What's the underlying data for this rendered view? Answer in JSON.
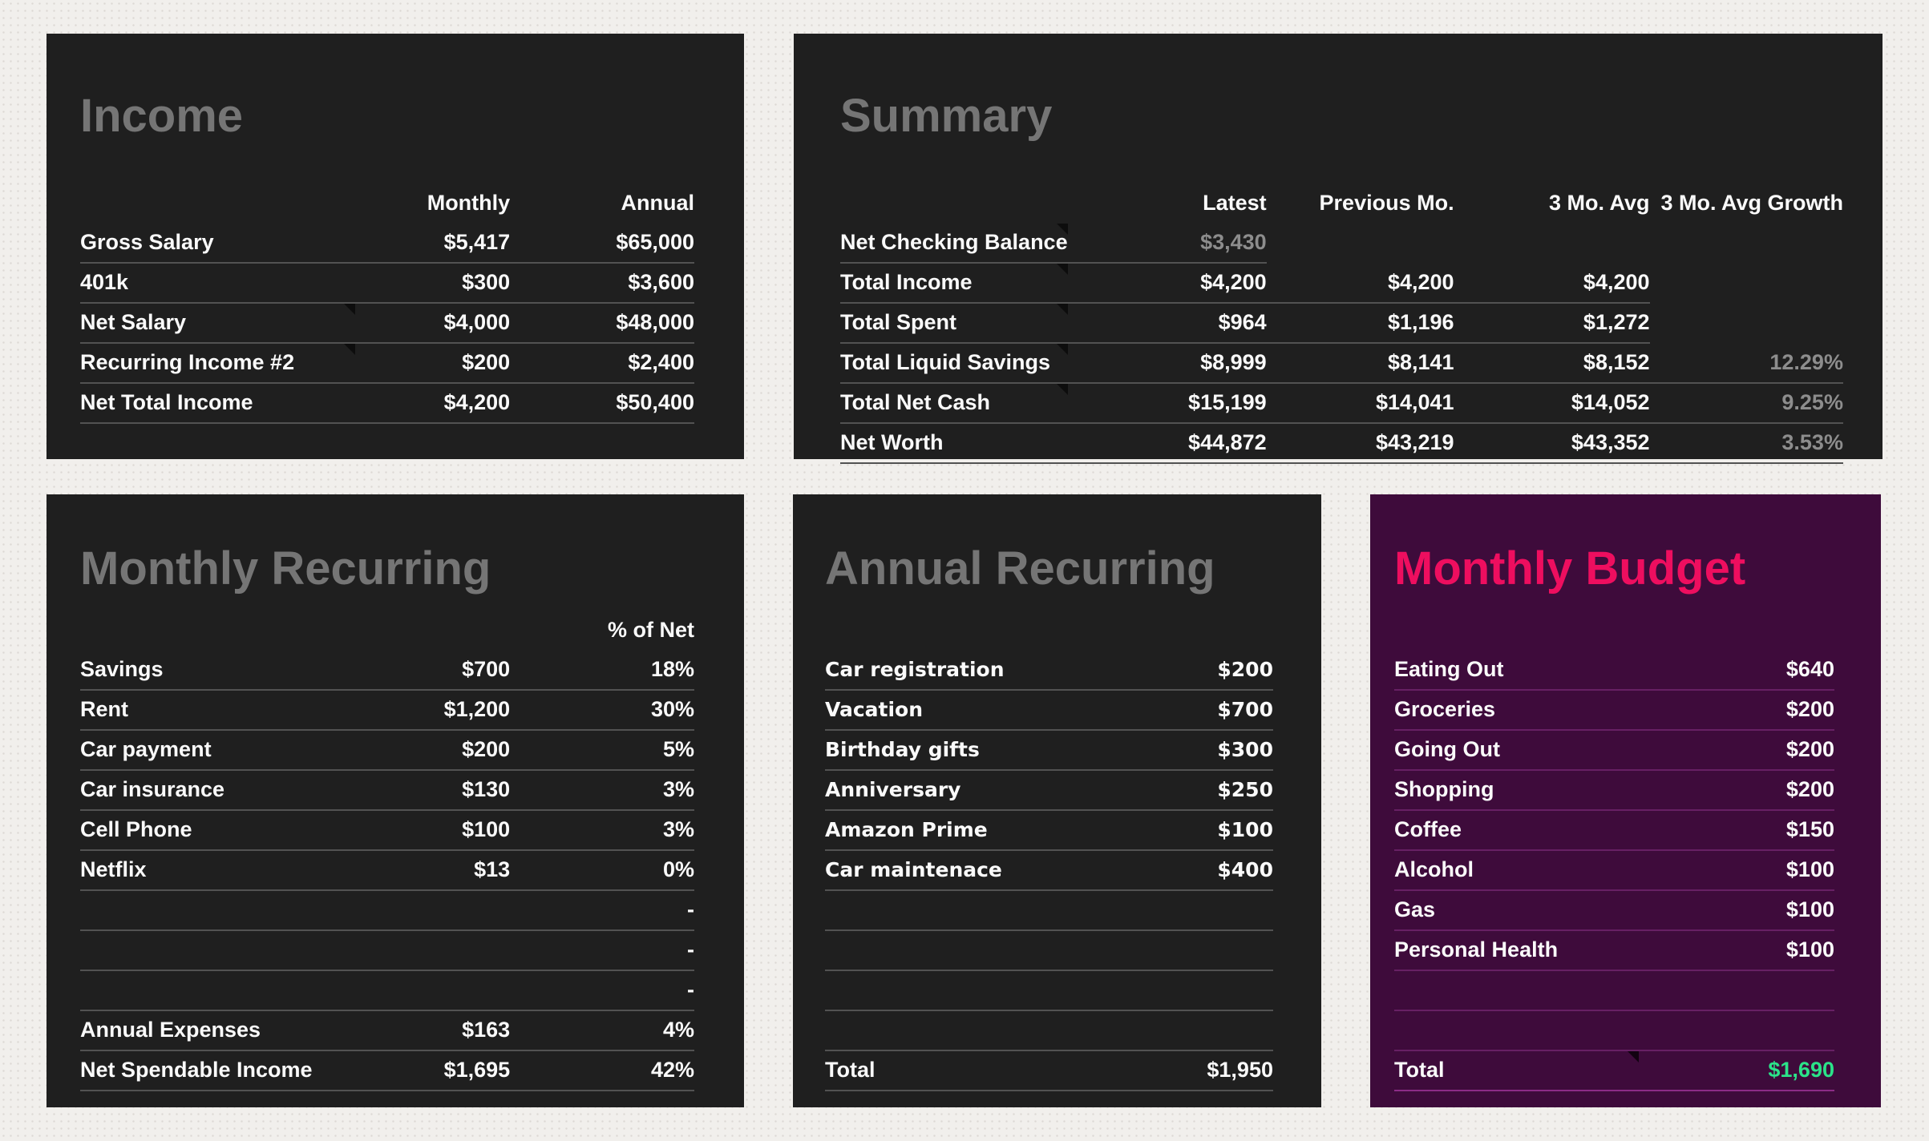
{
  "colors": {
    "page_bg": "#f1efec",
    "card_bg": "#1f1f1f",
    "budget_card_bg": "#3e0b3b",
    "title_gray": "#757575",
    "budget_title_pink": "#ee0e5f",
    "text_white": "#fafafa",
    "muted_gray": "#8d8d8d",
    "total_green": "#2be389",
    "rule_dark": "#525252",
    "rule_purple": "#672064"
  },
  "panels": {
    "income": {
      "title": "Income",
      "rows": [
        {
          "h": true,
          "cells": [
            "",
            "Monthly",
            "Annual"
          ]
        },
        {
          "rule": true,
          "cells": [
            "Gross Salary",
            "$5,417",
            "$65,000"
          ]
        },
        {
          "rule": true,
          "cells": [
            "401k",
            "$300",
            "$3,600"
          ]
        },
        {
          "rule": true,
          "m": true,
          "cells": [
            "Net Salary",
            "$4,000",
            "$48,000"
          ]
        },
        {
          "rule": true,
          "m": true,
          "cells": [
            "Recurring Income #2",
            "$200",
            "$2,400"
          ]
        },
        {
          "rule": true,
          "cells": [
            "Net Total Income",
            "$4,200",
            "$50,400"
          ]
        }
      ]
    },
    "summary": {
      "title": "Summary",
      "rows": [
        {
          "h": true,
          "cells": [
            "",
            "Latest",
            "Previous Mo.",
            "3 Mo. Avg",
            "3 Mo. Avg Growth"
          ]
        },
        {
          "rule": [
            0,
            1
          ],
          "m": true,
          "cells": [
            "Net Checking Balance",
            {
              "t": "$3,430",
              "c": "muted"
            },
            "",
            "",
            ""
          ]
        },
        {
          "rule": [
            0,
            1,
            2,
            3
          ],
          "m": true,
          "cells": [
            "Total Income",
            "$4,200",
            "$4,200",
            "$4,200",
            ""
          ]
        },
        {
          "rule": [
            0,
            1,
            2,
            3
          ],
          "m": true,
          "cells": [
            "Total Spent",
            "$964",
            "$1,196",
            "$1,272",
            ""
          ]
        },
        {
          "rule": true,
          "m": true,
          "cells": [
            "Total Liquid Savings",
            "$8,999",
            "$8,141",
            "$8,152",
            {
              "t": "12.29%",
              "c": "muted"
            }
          ]
        },
        {
          "rule": true,
          "m": true,
          "cells": [
            "Total Net Cash",
            "$15,199",
            "$14,041",
            "$14,052",
            {
              "t": "9.25%",
              "c": "muted"
            }
          ]
        },
        {
          "rule": true,
          "cells": [
            "Net Worth",
            "$44,872",
            "$43,219",
            "$43,352",
            {
              "t": "3.53%",
              "c": "muted"
            }
          ]
        }
      ]
    },
    "monthly_recurring": {
      "title": "Monthly Recurring",
      "rows": [
        {
          "h": true,
          "cells": [
            "",
            "",
            "% of Net"
          ]
        },
        {
          "rule": true,
          "cells": [
            "Savings",
            "$700",
            "18%"
          ]
        },
        {
          "rule": true,
          "cells": [
            "Rent",
            "$1,200",
            "30%"
          ]
        },
        {
          "rule": true,
          "cells": [
            "Car payment",
            "$200",
            "5%"
          ]
        },
        {
          "rule": true,
          "cells": [
            "Car insurance",
            "$130",
            "3%"
          ]
        },
        {
          "rule": true,
          "cells": [
            "Cell Phone",
            "$100",
            "3%"
          ]
        },
        {
          "rule": true,
          "cells": [
            "Netflix",
            "$13",
            "0%"
          ]
        },
        {
          "rule": true,
          "cells": [
            "",
            "",
            "-"
          ]
        },
        {
          "rule": true,
          "cells": [
            "",
            "",
            "-"
          ]
        },
        {
          "rule": true,
          "cells": [
            "",
            "",
            "-"
          ]
        },
        {
          "rule": true,
          "cells": [
            "Annual Expenses",
            "$163",
            "4%"
          ]
        },
        {
          "rule": true,
          "cells": [
            "Net Spendable Income",
            "$1,695",
            "42%"
          ]
        }
      ]
    },
    "annual_recurring": {
      "title": "Annual Recurring",
      "rows": [
        {
          "h": true,
          "cells": [
            "",
            ""
          ]
        },
        {
          "rule": true,
          "wide": true,
          "cells": [
            "Car registration",
            "$200"
          ]
        },
        {
          "rule": true,
          "wide": true,
          "cells": [
            "Vacation",
            "$700"
          ]
        },
        {
          "rule": true,
          "wide": true,
          "cells": [
            "Birthday gifts",
            "$300"
          ]
        },
        {
          "rule": true,
          "wide": true,
          "cells": [
            "Anniversary",
            "$250"
          ]
        },
        {
          "rule": true,
          "wide": true,
          "cells": [
            "Amazon Prime",
            "$100"
          ]
        },
        {
          "rule": true,
          "wide": true,
          "cells": [
            "Car maintenace",
            "$400"
          ]
        },
        {
          "rule": true,
          "cells": [
            "",
            ""
          ]
        },
        {
          "rule": true,
          "cells": [
            "",
            ""
          ]
        },
        {
          "rule": true,
          "cells": [
            "",
            ""
          ]
        },
        {
          "rule": true,
          "cells": [
            "",
            ""
          ]
        },
        {
          "rule": true,
          "cells": [
            "Total",
            "$1,950"
          ]
        }
      ]
    },
    "monthly_budget": {
      "title": "Monthly Budget",
      "rows": [
        {
          "h": true,
          "cells": [
            "",
            ""
          ]
        },
        {
          "rule": true,
          "cells": [
            "Eating Out",
            "$640"
          ]
        },
        {
          "rule": true,
          "cells": [
            "Groceries",
            "$200"
          ]
        },
        {
          "rule": true,
          "cells": [
            "Going Out",
            "$200"
          ]
        },
        {
          "rule": true,
          "cells": [
            "Shopping",
            "$200"
          ]
        },
        {
          "rule": true,
          "cells": [
            "Coffee",
            "$150"
          ]
        },
        {
          "rule": true,
          "cells": [
            "Alcohol",
            "$100"
          ]
        },
        {
          "rule": true,
          "cells": [
            "Gas",
            "$100"
          ]
        },
        {
          "rule": true,
          "cells": [
            "Personal Health",
            "$100"
          ]
        },
        {
          "rule": true,
          "cells": [
            "",
            ""
          ]
        },
        {
          "rule": true,
          "cells": [
            "",
            ""
          ]
        },
        {
          "rule": true,
          "tline": true,
          "m": true,
          "cells": [
            "Total",
            {
              "t": "$1,690",
              "c": "green"
            }
          ]
        }
      ]
    }
  }
}
